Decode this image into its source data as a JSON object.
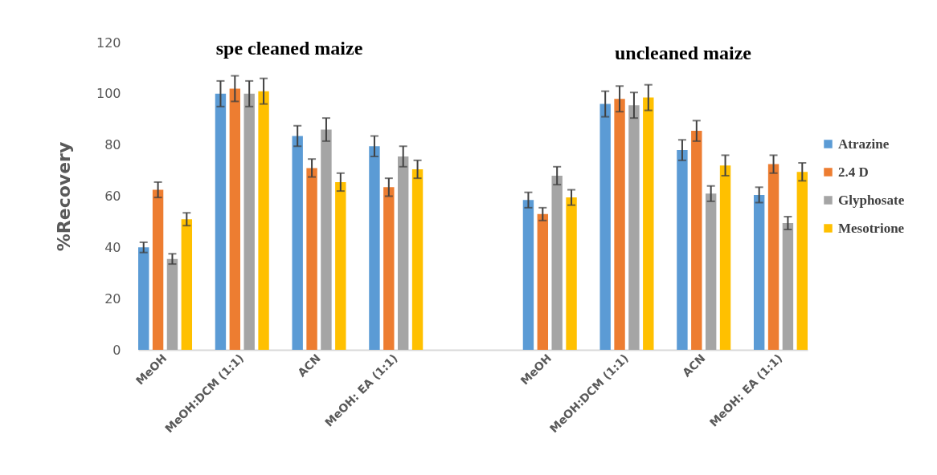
{
  "chart_data": {
    "type": "bar",
    "ylabel": "%Recovery",
    "annotations": [
      "spe cleaned maize",
      "uncleaned maize"
    ],
    "categories": [
      "MeOH",
      "MeOH:DCM (1:1)",
      "ACN",
      "MeOH: EA (1:1)",
      null,
      "MeOH",
      "MeOH:DCM (1:1)",
      "ACN",
      "MeOH: EA (1:1)"
    ],
    "ylim": [
      0,
      120
    ],
    "yticks": [
      0,
      20,
      40,
      60,
      80,
      100,
      120
    ],
    "grid": false,
    "legend": "right",
    "series": [
      {
        "name": "Atrazine",
        "color": "#5b9bd5",
        "values": [
          40,
          100,
          83.5,
          79.5,
          null,
          58.5,
          96,
          78,
          60.5
        ],
        "errors": [
          2,
          5,
          4,
          4,
          null,
          3,
          5,
          4,
          3
        ]
      },
      {
        "name": "2.4 D",
        "color": "#ed7d31",
        "values": [
          62.5,
          102,
          71,
          63.5,
          null,
          53,
          98,
          85.5,
          72.5
        ],
        "errors": [
          3,
          5,
          3.5,
          3.5,
          null,
          2.5,
          5,
          4,
          3.5
        ]
      },
      {
        "name": "Glyphosate",
        "color": "#a5a5a5",
        "values": [
          35.5,
          100,
          86,
          75.5,
          null,
          68,
          95.5,
          61,
          49.5
        ],
        "errors": [
          2,
          5,
          4.5,
          4,
          null,
          3.5,
          5,
          3,
          2.5
        ]
      },
      {
        "name": "Mesotrione",
        "color": "#ffc000",
        "values": [
          51,
          101,
          65.5,
          70.5,
          null,
          59.5,
          98.5,
          72,
          69.5
        ],
        "errors": [
          2.5,
          5,
          3.5,
          3.5,
          null,
          3,
          5,
          4,
          3.5
        ]
      }
    ]
  }
}
